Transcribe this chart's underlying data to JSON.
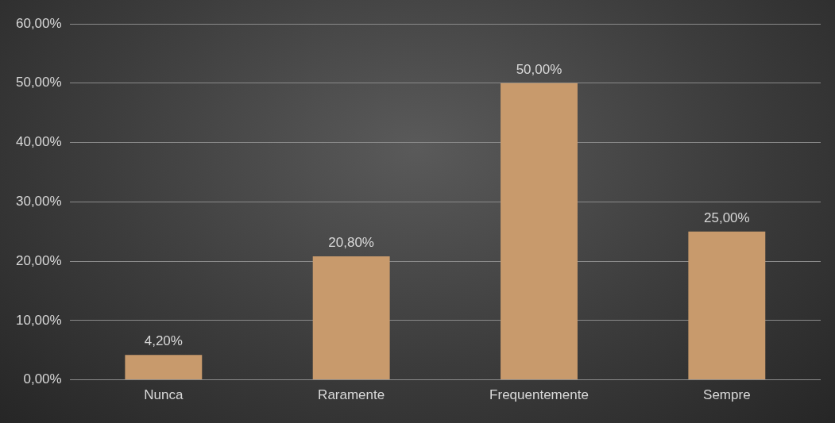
{
  "chart_data": {
    "type": "bar",
    "categories": [
      "Nunca",
      "Raramente",
      "Frequentemente",
      "Sempre"
    ],
    "values": [
      4.2,
      20.8,
      50,
      25
    ],
    "color": "#c89a6c",
    "value_labels": [
      "4,20%",
      "20,80%",
      "50,00%",
      "25,00%"
    ],
    "ylim": [
      0,
      60
    ],
    "yticks": [
      {
        "value": 0,
        "label": "0,00%"
      },
      {
        "value": 10,
        "label": "10,00%"
      },
      {
        "value": 20,
        "label": "20,00%"
      },
      {
        "value": 30,
        "label": "30,00%"
      },
      {
        "value": 40,
        "label": "40,00%"
      },
      {
        "value": 50,
        "label": "50,00%"
      },
      {
        "value": 60,
        "label": "60,00%"
      }
    ],
    "grid": "y",
    "legend": false
  }
}
